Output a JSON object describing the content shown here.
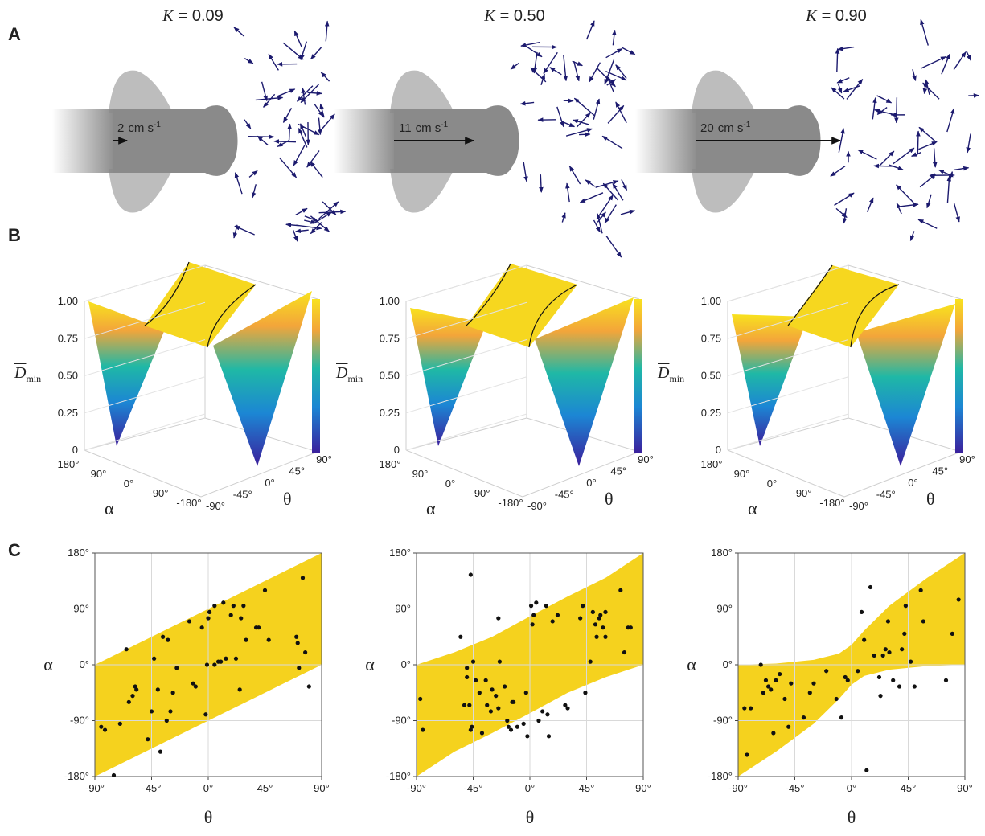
{
  "panel_labels": {
    "a": "A",
    "b": "B",
    "c": "C"
  },
  "panel_a": [
    {
      "k_symbol": "K",
      "k_text": "= 0.09",
      "speed": 2,
      "speed_unit": "cm s",
      "speed_exp": "-1"
    },
    {
      "k_symbol": "K",
      "k_text": "= 0.50",
      "speed": 11,
      "speed_unit": "cm s",
      "speed_exp": "-1"
    },
    {
      "k_symbol": "K",
      "k_text": "= 0.90",
      "speed": 20,
      "speed_unit": "cm s",
      "speed_exp": "-1"
    }
  ],
  "panel_b": {
    "z_label": "D",
    "z_sub": "min",
    "x_label": "α",
    "y_label": "θ",
    "zlim": [
      0,
      1
    ],
    "zticks": [
      0,
      0.25,
      {
        "value": 0.5,
        "label": "0.50"
      },
      0.75,
      {
        "value": 1,
        "label": "1.00"
      }
    ],
    "alphalim": [
      180,
      -180
    ],
    "alphaticks": [
      {
        "value": 180,
        "label": "180°"
      },
      {
        "value": 90,
        "label": "90°"
      },
      {
        "value": 0,
        "label": "0°"
      },
      {
        "value": -90,
        "label": "-90°"
      },
      {
        "value": -180,
        "label": "-180°"
      }
    ],
    "thetalim": [
      -90,
      90
    ],
    "thetaticks": [
      {
        "value": -90,
        "label": "-90°"
      },
      {
        "value": -45,
        "label": "-45°"
      },
      {
        "value": 0,
        "label": "0°"
      },
      {
        "value": 45,
        "label": "45°"
      },
      {
        "value": 90,
        "label": "90°"
      }
    ]
  },
  "chart_data": [
    {
      "type": "scatter",
      "x_label": "θ",
      "y_label": "α",
      "color": "#111111",
      "band_color": "#f5d21e",
      "grid": true,
      "xlim": [
        -90,
        90
      ],
      "ylim": [
        -180,
        180
      ],
      "xticks": [
        {
          "value": -90,
          "label": "-90°"
        },
        {
          "value": -45,
          "label": "-45°"
        },
        {
          "value": 0,
          "label": "0°"
        },
        {
          "value": 45,
          "label": "45°"
        },
        {
          "value": 90,
          "label": "90°"
        }
      ],
      "yticks": [
        {
          "value": -180,
          "label": "-180°"
        },
        {
          "value": -90,
          "label": "-90°"
        },
        {
          "value": 0,
          "label": "0°"
        },
        {
          "value": 90,
          "label": "90°"
        },
        {
          "value": 180,
          "label": "180°"
        }
      ],
      "band_x": [
        -90,
        -60,
        -30,
        0,
        30,
        60,
        90
      ],
      "band_upper": [
        0,
        30,
        60,
        90,
        120,
        150,
        180
      ],
      "band_lower": [
        -180,
        -150,
        -120,
        -90,
        -60,
        -30,
        0
      ],
      "x": [
        -85,
        -82,
        -75,
        -70,
        -65,
        -63,
        -60,
        -58,
        -57,
        -48,
        -45,
        -43,
        -40,
        -38,
        -36,
        -33,
        -32,
        -30,
        -28,
        -25,
        -15,
        -12,
        -10,
        -5,
        -2,
        -1,
        0,
        1,
        5,
        5,
        8,
        10,
        12,
        14,
        18,
        20,
        22,
        25,
        26,
        28,
        30,
        38,
        40,
        45,
        48,
        70,
        71,
        72,
        75,
        77,
        80
      ],
      "values": [
        -100,
        -105,
        -178,
        -95,
        25,
        -60,
        -50,
        -35,
        -40,
        -120,
        -75,
        10,
        -40,
        -140,
        45,
        -90,
        40,
        -75,
        -45,
        -5,
        70,
        -30,
        -35,
        60,
        -80,
        0,
        75,
        85,
        0,
        95,
        5,
        5,
        100,
        10,
        80,
        95,
        10,
        -40,
        75,
        95,
        40,
        60,
        60,
        120,
        40,
        45,
        35,
        -5,
        140,
        20,
        -35
      ]
    },
    {
      "type": "scatter",
      "x_label": "θ",
      "y_label": "α",
      "color": "#111111",
      "band_color": "#f5d21e",
      "grid": true,
      "xlim": [
        -90,
        90
      ],
      "ylim": [
        -180,
        180
      ],
      "xticks": [
        {
          "value": -90,
          "label": "-90°"
        },
        {
          "value": -45,
          "label": "-45°"
        },
        {
          "value": 0,
          "label": "0°"
        },
        {
          "value": 45,
          "label": "45°"
        },
        {
          "value": 90,
          "label": "90°"
        }
      ],
      "yticks": [
        {
          "value": -180,
          "label": "-180°"
        },
        {
          "value": -90,
          "label": "-90°"
        },
        {
          "value": 0,
          "label": "0°"
        },
        {
          "value": 90,
          "label": "90°"
        },
        {
          "value": 180,
          "label": "180°"
        }
      ],
      "band_x": [
        -90,
        -60,
        -30,
        0,
        30,
        60,
        90
      ],
      "band_upper": [
        0,
        20,
        45,
        78,
        110,
        140,
        180
      ],
      "band_lower": [
        -180,
        -140,
        -110,
        -78,
        -45,
        -20,
        0
      ],
      "x": [
        -87,
        -85,
        -55,
        -52,
        -50,
        -50,
        -48,
        -47,
        -47,
        -46,
        -45,
        -43,
        -40,
        -38,
        -35,
        -34,
        -31,
        -30,
        -27,
        -25,
        -20,
        -18,
        -17,
        -15,
        -14,
        -13,
        -10,
        -5,
        -3,
        -2,
        -25,
        -24,
        1,
        2,
        3,
        5,
        7,
        10,
        13,
        14,
        15,
        18,
        22,
        28,
        30,
        40,
        42,
        44,
        48,
        50,
        52,
        53,
        55,
        56,
        58,
        60,
        60,
        72,
        75,
        78,
        80
      ],
      "values": [
        -55,
        -105,
        45,
        -65,
        -20,
        -5,
        -65,
        145,
        -105,
        -100,
        5,
        -25,
        -45,
        -110,
        -25,
        -65,
        -75,
        -40,
        -50,
        -70,
        -35,
        -90,
        -100,
        -105,
        -60,
        -60,
        -100,
        -95,
        -45,
        -115,
        75,
        5,
        95,
        65,
        80,
        100,
        -90,
        -75,
        95,
        -80,
        -115,
        70,
        80,
        -65,
        -70,
        75,
        95,
        -45,
        5,
        85,
        65,
        45,
        75,
        80,
        60,
        85,
        45,
        120,
        20,
        60,
        60
      ]
    },
    {
      "type": "scatter",
      "x_label": "θ",
      "y_label": "α",
      "color": "#111111",
      "band_color": "#f5d21e",
      "grid": true,
      "xlim": [
        -90,
        90
      ],
      "ylim": [
        -180,
        180
      ],
      "xticks": [
        {
          "value": -90,
          "label": "-90°"
        },
        {
          "value": -45,
          "label": "-45°"
        },
        {
          "value": 0,
          "label": "0°"
        },
        {
          "value": 45,
          "label": "45°"
        },
        {
          "value": 90,
          "label": "90°"
        }
      ],
      "yticks": [
        {
          "value": -180,
          "label": "-180°"
        },
        {
          "value": -90,
          "label": "-90°"
        },
        {
          "value": 0,
          "label": "0°"
        },
        {
          "value": 90,
          "label": "90°"
        },
        {
          "value": 180,
          "label": "180°"
        }
      ],
      "band_x": [
        -90,
        -60,
        -30,
        -10,
        0,
        10,
        30,
        60,
        90
      ],
      "band_upper": [
        0,
        2,
        8,
        18,
        32,
        55,
        95,
        140,
        180
      ],
      "band_lower": [
        -180,
        -140,
        -95,
        -55,
        -32,
        -18,
        -8,
        -2,
        0
      ],
      "x": [
        -85,
        -83,
        -80,
        -72,
        -70,
        -68,
        -66,
        -64,
        -62,
        -60,
        -57,
        -53,
        -50,
        -48,
        -38,
        -33,
        -30,
        -20,
        -12,
        -8,
        -5,
        -3,
        5,
        8,
        10,
        12,
        15,
        18,
        22,
        23,
        25,
        27,
        29,
        30,
        33,
        38,
        40,
        42,
        43,
        47,
        50,
        55,
        57,
        75,
        80,
        85
      ],
      "values": [
        -70,
        -145,
        -70,
        0,
        -45,
        -25,
        -35,
        -40,
        -110,
        -25,
        -15,
        -55,
        -100,
        -30,
        -85,
        -45,
        -30,
        -10,
        -55,
        -85,
        -20,
        -25,
        -10,
        85,
        40,
        -170,
        125,
        15,
        -20,
        -50,
        15,
        25,
        70,
        20,
        -25,
        -35,
        25,
        50,
        95,
        5,
        -35,
        120,
        70,
        -25,
        50,
        105
      ]
    }
  ]
}
